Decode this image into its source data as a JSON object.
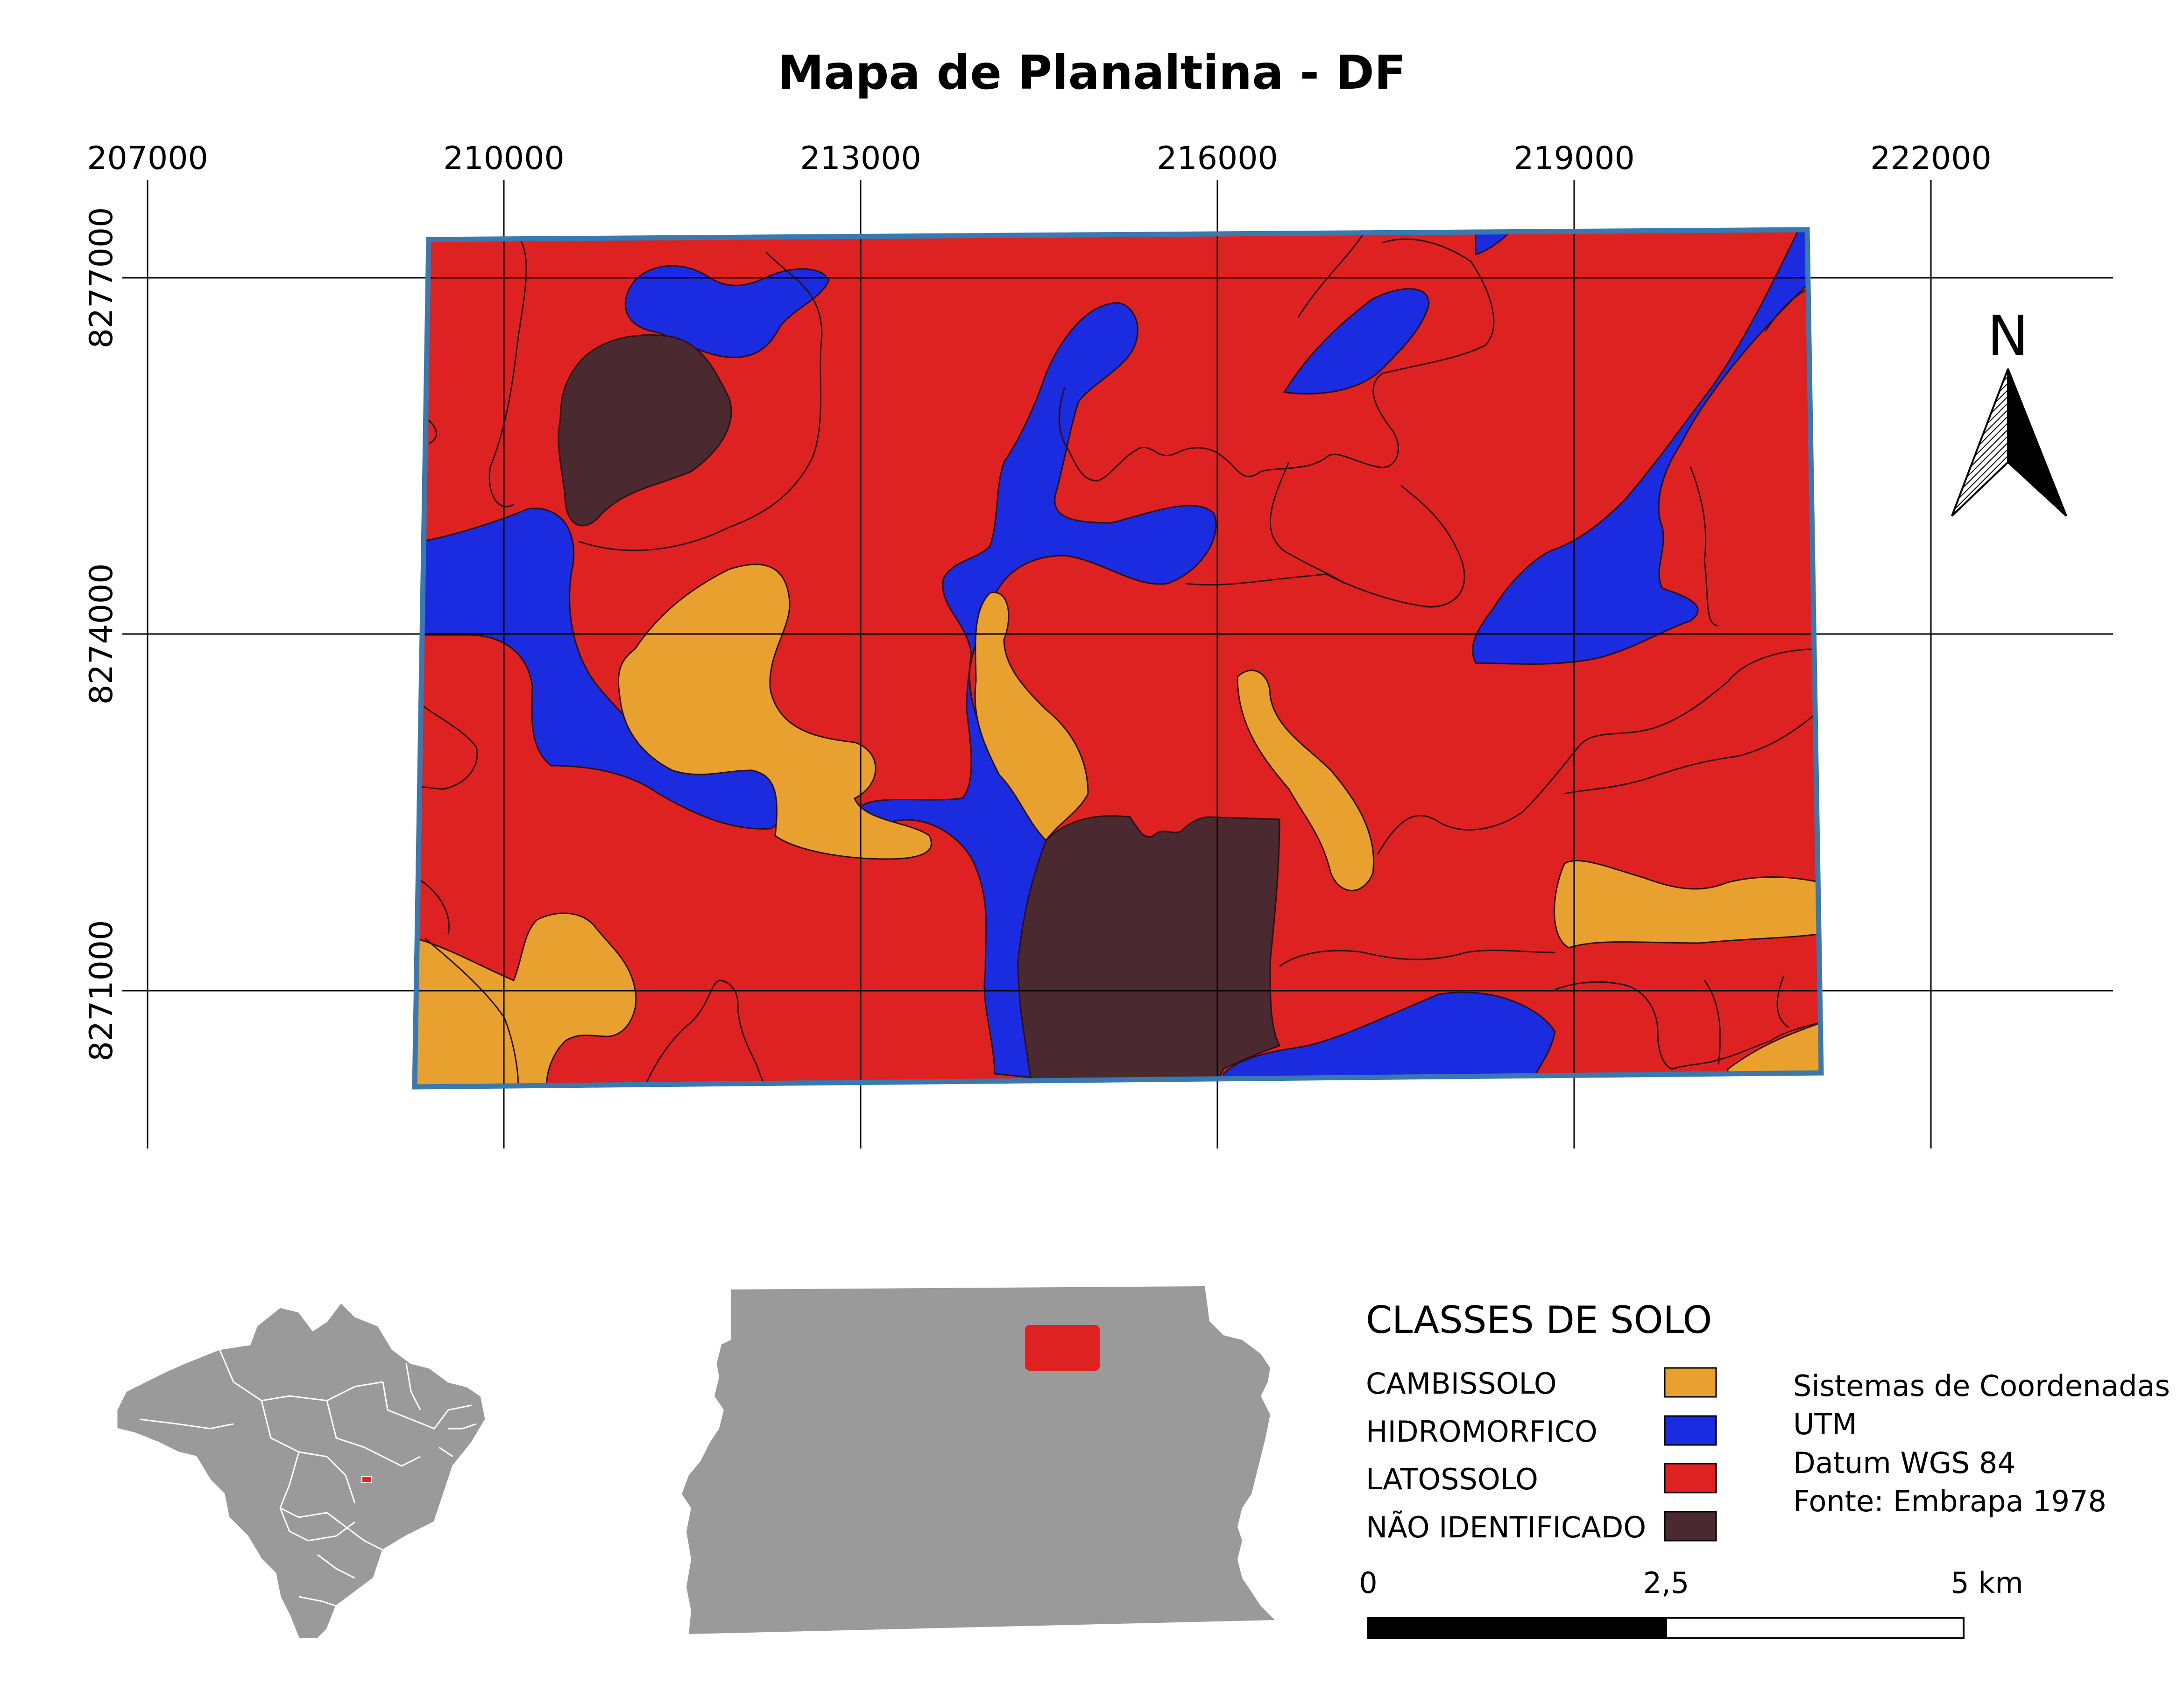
{
  "title": "Mapa de Planaltina - DF",
  "grid": {
    "x_labels": [
      "207000",
      "210000",
      "213000",
      "216000",
      "219000",
      "222000"
    ],
    "y_labels": [
      "8277000",
      "8274000",
      "8271000"
    ]
  },
  "north_arrow": {
    "label": "N",
    "icon": "north-arrow-icon"
  },
  "legend": {
    "title": "CLASSES DE SOLO",
    "items": [
      {
        "label": "CAMBISSOLO",
        "color": "#e8a02e"
      },
      {
        "label": "HIDROMORFICO",
        "color": "#1a2be0"
      },
      {
        "label": "LATOSSOLO",
        "color": "#de2121"
      },
      {
        "label": "NÃO IDENTIFICADO",
        "color": "#4a2a30"
      }
    ]
  },
  "info": {
    "lines": [
      "Sistemas de Coordenadas",
      "UTM",
      "Datum WGS 84",
      "Fonte: Embrapa 1978"
    ]
  },
  "scale_bar": {
    "labels": [
      "0",
      "2,5",
      "5 km"
    ]
  },
  "colors": {
    "cambissolo": "#e8a02e",
    "hidromorfico": "#1a2be0",
    "latossolo": "#de2121",
    "nao_identificado": "#4a2a30",
    "frame": "#3a78b0",
    "inset_gray": "#9a9a9a",
    "highlight": "#de2121"
  }
}
